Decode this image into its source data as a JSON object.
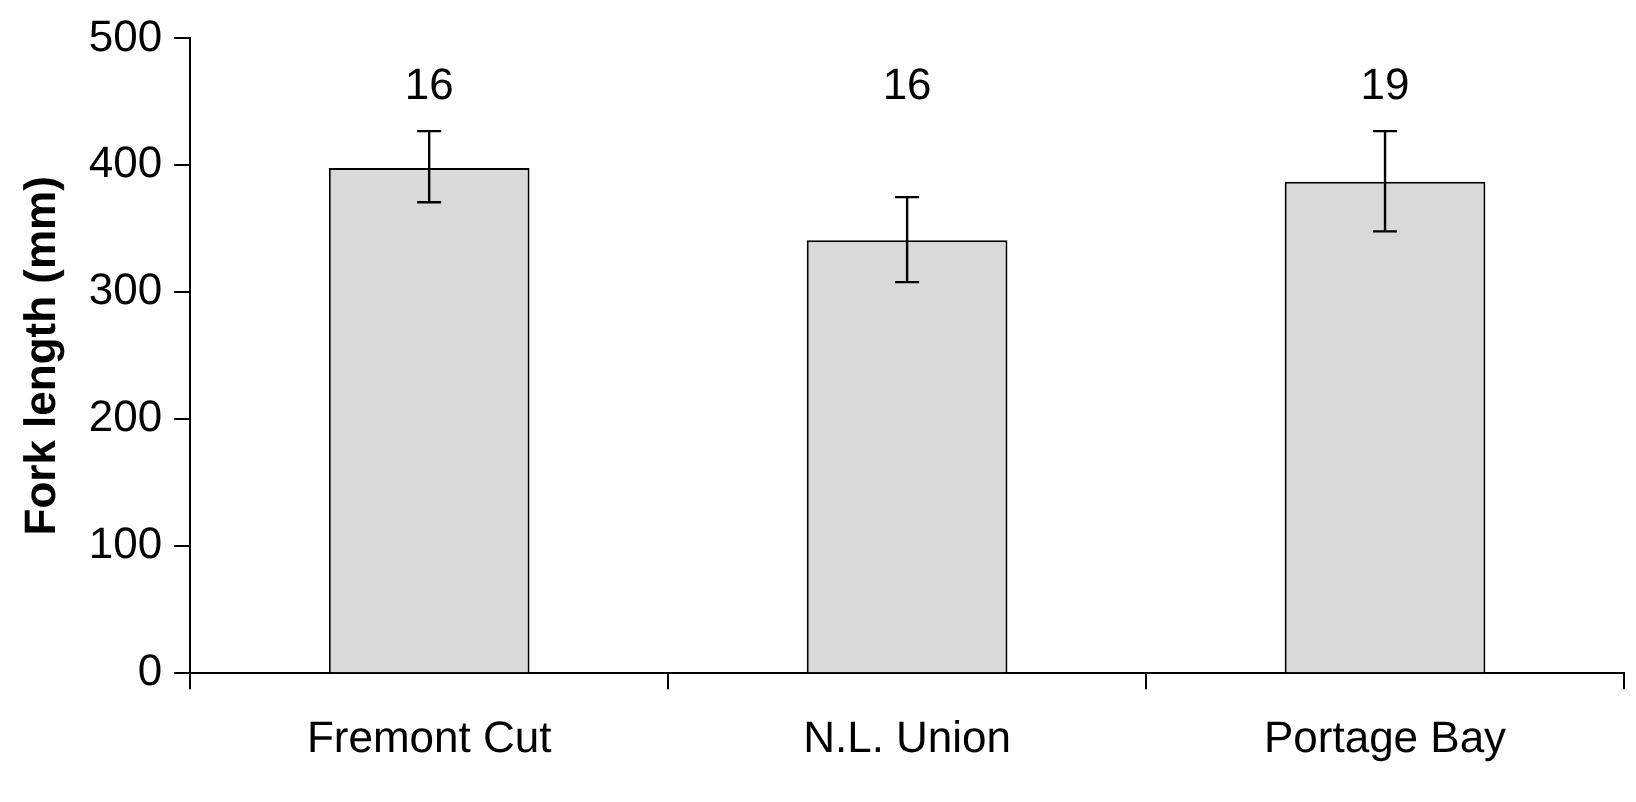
{
  "chart_data": {
    "type": "bar",
    "ylabel": "Fork length (mm)",
    "categories": [
      "Fremont Cut",
      "N.L. Union",
      "Portage Bay"
    ],
    "values": [
      398,
      341,
      387
    ],
    "errors": [
      [
        371,
        427
      ],
      [
        308,
        375
      ],
      [
        348,
        427
      ]
    ],
    "color": "#d9d9d9",
    "ylim": [
      0,
      500
    ],
    "yticks": [
      0,
      100,
      200,
      300,
      400,
      500
    ],
    "grid": false,
    "legend": false,
    "annotations": [
      "16",
      "16",
      "19"
    ]
  }
}
